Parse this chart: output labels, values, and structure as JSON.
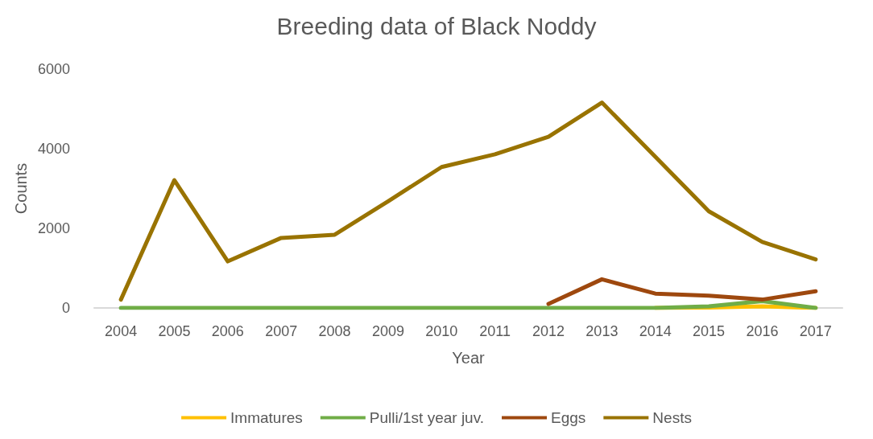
{
  "chart_data": {
    "type": "line",
    "title": "Breeding data of Black Noddy",
    "xlabel": "Year",
    "ylabel": "Counts",
    "categories": [
      "2004",
      "2005",
      "2006",
      "2007",
      "2008",
      "2009",
      "2010",
      "2011",
      "2012",
      "2013",
      "2014",
      "2015",
      "2016",
      "2017"
    ],
    "ylim": [
      0,
      6000
    ],
    "yticks": [
      0,
      2000,
      4000,
      6000
    ],
    "grid": false,
    "legend": "bottom",
    "line_style": "solid",
    "marker": "none",
    "series": [
      {
        "name": "Immatures",
        "color": "#ffc000",
        "values": [
          null,
          null,
          null,
          null,
          null,
          null,
          null,
          null,
          null,
          null,
          0,
          10,
          40,
          0
        ]
      },
      {
        "name": "Pulli/1st year juv.",
        "color": "#70ad47",
        "values": [
          0,
          0,
          0,
          0,
          0,
          0,
          0,
          0,
          0,
          0,
          0,
          40,
          170,
          0
        ]
      },
      {
        "name": "Eggs",
        "color": "#9e480e",
        "values": [
          null,
          null,
          null,
          null,
          null,
          null,
          null,
          null,
          100,
          720,
          360,
          310,
          210,
          420
        ]
      },
      {
        "name": "Nests",
        "color": "#997300",
        "values": [
          210,
          3210,
          1170,
          1760,
          1840,
          2680,
          3540,
          3860,
          4300,
          5160,
          3800,
          2430,
          1660,
          1220
        ]
      }
    ]
  }
}
